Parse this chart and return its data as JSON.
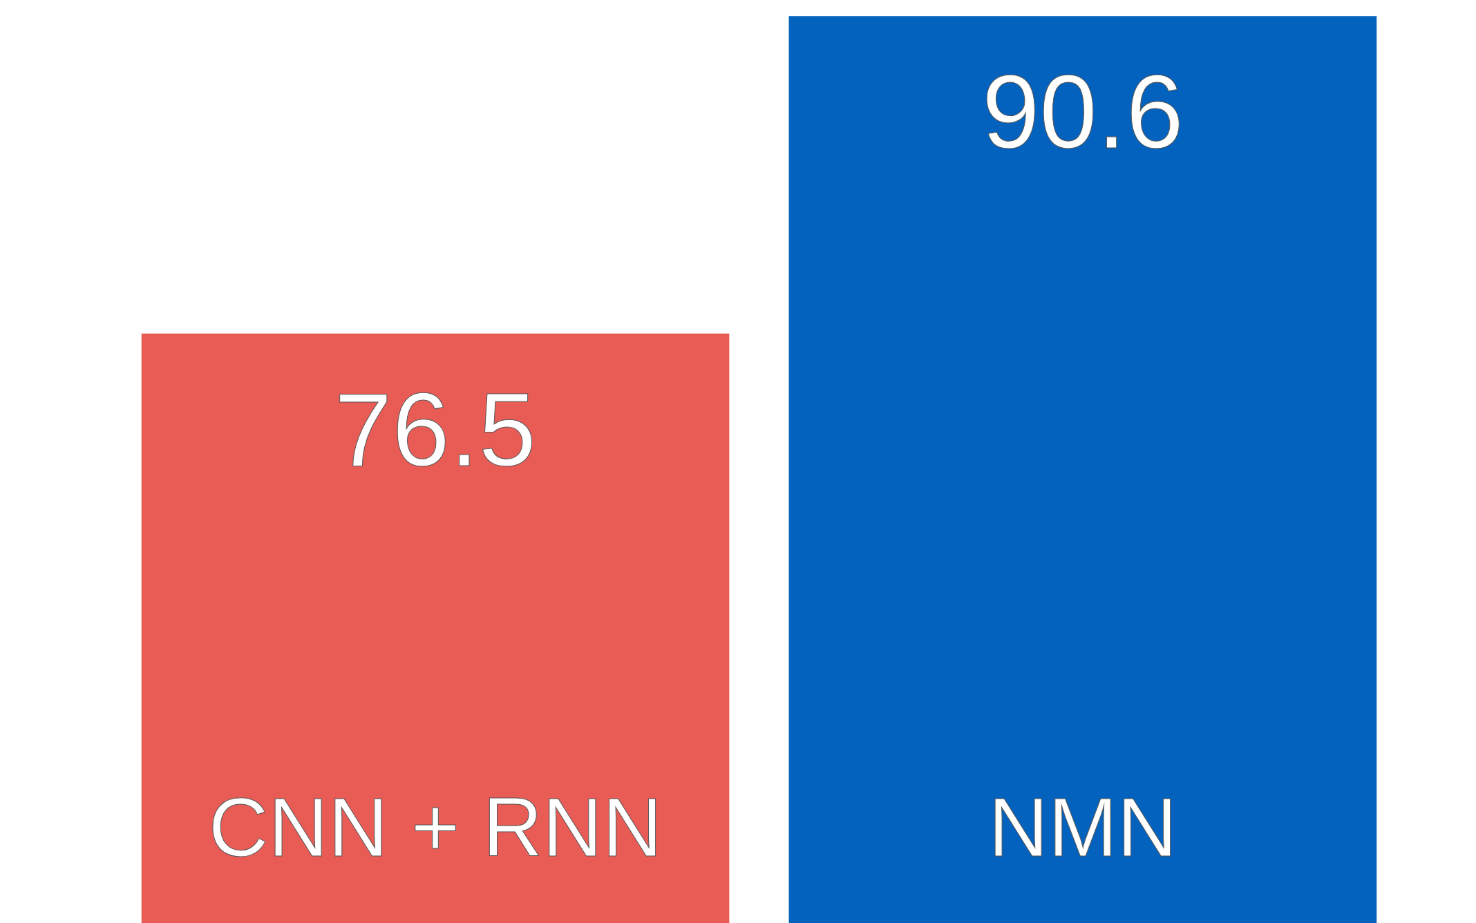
{
  "chart_data": {
    "type": "bar",
    "categories": [
      "CNN + RNN",
      "NMN"
    ],
    "values": [
      76.5,
      90.6
    ],
    "colors": [
      "#e95c55",
      "#0362bd"
    ],
    "ylim": [
      50.3,
      91.3
    ],
    "data_labels": true,
    "tick_labels": false
  }
}
